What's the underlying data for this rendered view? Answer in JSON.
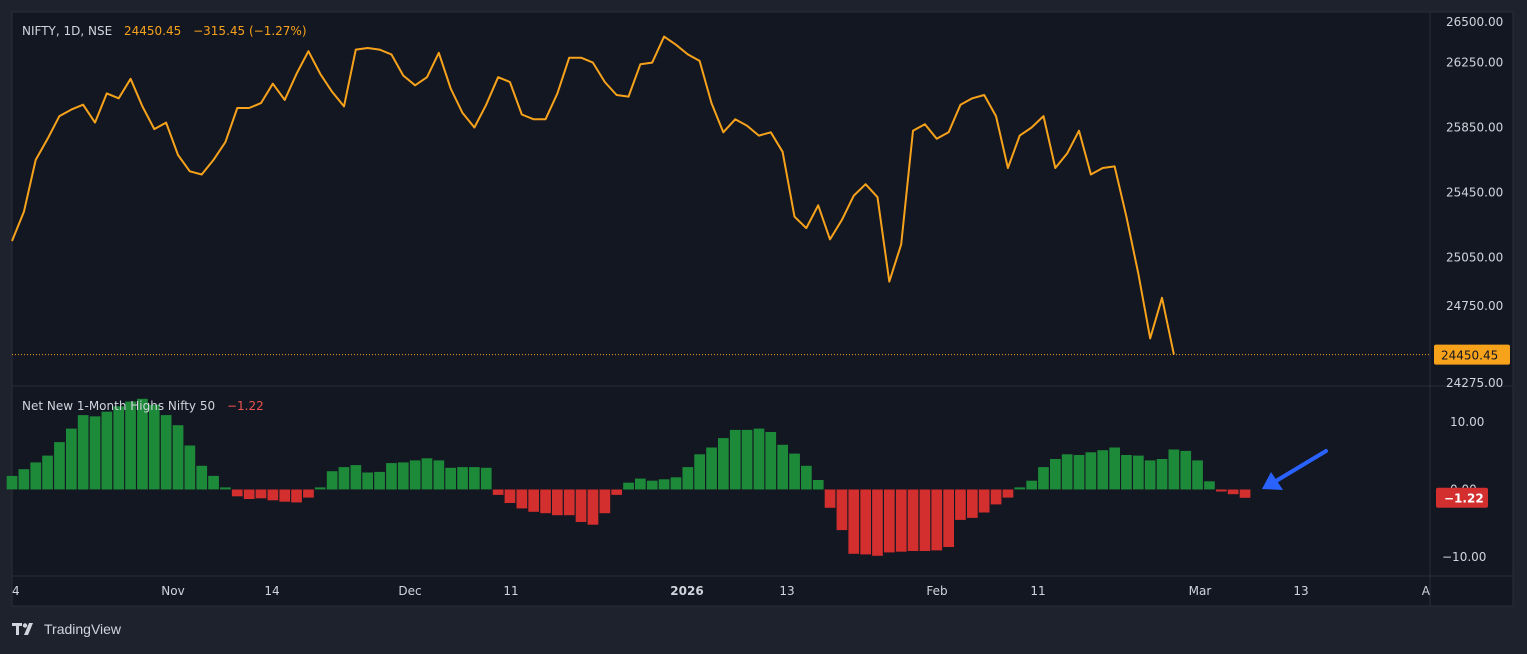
{
  "colors": {
    "background": "#131722",
    "frame": "#1e222d",
    "grid": "#2a2e39",
    "text": "#d1d4dc",
    "line": "#f7a21b",
    "positive": "#1d8a3a",
    "negative": "#d32f2f",
    "arrow": "#2962ff"
  },
  "branding": {
    "name": "TradingView",
    "logo_icon": "tradingview-logo-icon"
  },
  "price_pane": {
    "legend": {
      "symbol": "NIFTY, 1D, NSE",
      "last": "24450.45",
      "change": "−315.45 (−1.27%)"
    },
    "last_price_label": "24450.45",
    "y_ticks": [
      "26500.00",
      "26250.00",
      "25850.00",
      "25450.00",
      "25050.00",
      "24750.00",
      "24450.00",
      "24275.00"
    ]
  },
  "indicator_pane": {
    "legend": {
      "name": "Net New 1-Month Highs Nifty 50",
      "value": "−1.22"
    },
    "last_value_label": "−1.22",
    "y_ticks": [
      "10.00",
      "0.00",
      "−10.00"
    ]
  },
  "x_axis": {
    "labels": [
      "4",
      "Nov",
      "14",
      "Dec",
      "11",
      "2026",
      "13",
      "Feb",
      "11",
      "Mar",
      "13",
      "A"
    ]
  },
  "annotation": {
    "type": "arrow",
    "icon": "arrow-icon",
    "color": "#2962ff"
  },
  "chart_data": [
    {
      "type": "line",
      "series": [
        {
          "values": [
            25150,
            25330,
            25650,
            25780,
            25920,
            25960,
            25990,
            25880,
            26060,
            26030,
            26150,
            25980,
            25840,
            25880,
            25680,
            25580,
            25560,
            25650,
            25760,
            25970,
            25970,
            26000,
            26120,
            26020,
            26180,
            26320,
            26180,
            26070,
            25980,
            26330,
            26340,
            26330,
            26300,
            26170,
            26110,
            26160,
            26310,
            26090,
            25940,
            25850,
            25990,
            26160,
            26130,
            25930,
            25900,
            25900,
            26060,
            26280,
            26280,
            26250,
            26130,
            26050,
            26040,
            26240,
            26250,
            26410,
            26360,
            26300,
            26260,
            26000,
            25820,
            25900,
            25860,
            25800,
            25820,
            25700,
            25300,
            25230,
            25370,
            25160,
            25280,
            25430,
            25500,
            25420,
            24900,
            25130,
            25830,
            25870,
            25780,
            25820,
            25990,
            26030,
            26050,
            25920,
            25600,
            25800,
            25850,
            25920,
            25600,
            25690,
            25830,
            25560,
            25600,
            25610,
            25300,
            24950,
            24550,
            24800,
            24450
          ]
        }
      ],
      "ylim": [
        24275,
        26500
      ]
    },
    {
      "type": "bar",
      "series": [
        {
          "values": [
            2,
            3,
            4,
            5,
            7,
            9,
            11,
            10.8,
            11.5,
            12.3,
            13,
            13.4,
            12.5,
            11,
            9.5,
            6.5,
            3.5,
            2,
            0.3,
            -1,
            -1.4,
            -1.3,
            -1.6,
            -1.8,
            -1.9,
            -1.2,
            0.3,
            2.7,
            3.3,
            3.6,
            2.5,
            2.6,
            3.9,
            4,
            4.3,
            4.6,
            4.3,
            3.2,
            3.3,
            3.3,
            3.2,
            -0.8,
            -2,
            -2.8,
            -3.3,
            -3.5,
            -3.8,
            -3.8,
            -4.8,
            -5.2,
            -3.5,
            -0.8,
            1,
            1.6,
            1.3,
            1.5,
            1.8,
            3.3,
            5.2,
            6.2,
            7.6,
            8.8,
            8.8,
            9,
            8.5,
            6.6,
            5.3,
            3.5,
            1.4,
            -2.7,
            -6,
            -9.5,
            -9.6,
            -9.8,
            -9.3,
            -9.2,
            -9.1,
            -9.1,
            -9,
            -8.5,
            -4.5,
            -4.2,
            -3.4,
            -2.2,
            -1.2,
            0.3,
            1.3,
            3.3,
            4.5,
            5.2,
            5.1,
            5.5,
            5.8,
            6.2,
            5.1,
            5,
            4.3,
            4.5,
            5.9,
            5.7,
            4.3,
            1.2,
            -0.3,
            -0.7,
            -1.22
          ]
        }
      ],
      "ylim": [
        -12.5,
        15
      ]
    }
  ]
}
